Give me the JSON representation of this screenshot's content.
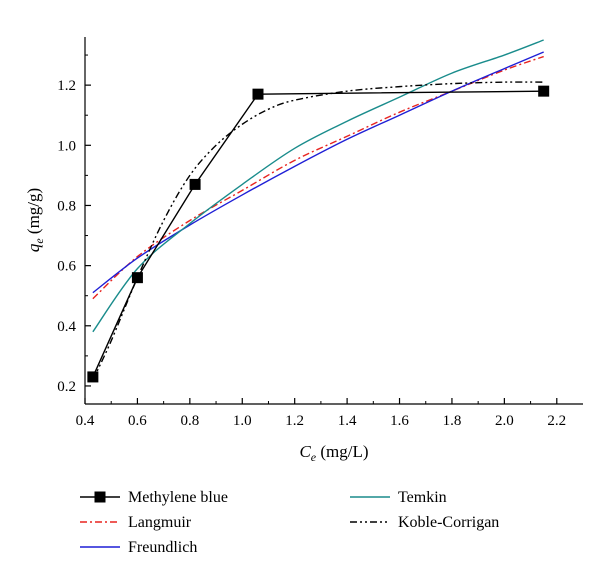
{
  "chart_data": {
    "type": "line",
    "x_axis": {
      "ticks": [
        0.4,
        0.6,
        0.8,
        1.0,
        1.2,
        1.4,
        1.6,
        1.8,
        2.0,
        2.2
      ],
      "tick_labels": [
        "0.4",
        "0.6",
        "0.8",
        "1.0",
        "1.2",
        "1.4",
        "1.6",
        "1.8",
        "2.0",
        "2.2"
      ],
      "range": [
        0.4,
        2.3
      ],
      "label_main": "C",
      "label_sub": "e",
      "label_unit": " (mg/L)"
    },
    "y_axis": {
      "ticks": [
        0.2,
        0.4,
        0.6,
        0.8,
        1.0,
        1.2
      ],
      "tick_labels": [
        "0.2",
        "0.4",
        "0.6",
        "0.8",
        "1.0",
        "1.2"
      ],
      "range": [
        0.14,
        1.36
      ],
      "label_main": "q",
      "label_sub": "e",
      "label_unit": " (mg/g)"
    },
    "grid": false,
    "legend_position": "bottom",
    "series": [
      {
        "name": "Methylene blue",
        "color": "#000000",
        "dash": "solid",
        "marker": "square",
        "x": [
          0.43,
          0.6,
          0.82,
          1.06,
          2.15
        ],
        "y": [
          0.23,
          0.56,
          0.87,
          1.17,
          1.18
        ]
      },
      {
        "name": "Langmuir",
        "color": "#e8231f",
        "dash": "dashdot",
        "marker": "none",
        "x": [
          0.43,
          0.6,
          0.8,
          1.0,
          1.2,
          1.4,
          1.6,
          1.8,
          2.0,
          2.15
        ],
        "y": [
          0.49,
          0.63,
          0.75,
          0.85,
          0.95,
          1.03,
          1.11,
          1.18,
          1.25,
          1.295
        ]
      },
      {
        "name": "Freundlich",
        "color": "#1f1fd6",
        "dash": "solid",
        "marker": "none",
        "x": [
          0.43,
          0.6,
          0.8,
          1.0,
          1.2,
          1.4,
          1.6,
          1.8,
          2.0,
          2.15
        ],
        "y": [
          0.51,
          0.625,
          0.735,
          0.835,
          0.93,
          1.02,
          1.1,
          1.18,
          1.255,
          1.31
        ]
      },
      {
        "name": "Temkin",
        "color": "#1a8c8c",
        "dash": "solid",
        "marker": "none",
        "x": [
          0.43,
          0.6,
          0.8,
          1.0,
          1.2,
          1.4,
          1.6,
          1.8,
          2.0,
          2.15
        ],
        "y": [
          0.38,
          0.59,
          0.74,
          0.87,
          0.99,
          1.08,
          1.16,
          1.24,
          1.3,
          1.35
        ]
      },
      {
        "name": "Koble-Corrigan",
        "color": "#000000",
        "dash": "dashdotdot",
        "marker": "none",
        "x": [
          0.43,
          0.5,
          0.6,
          0.7,
          0.8,
          0.9,
          1.0,
          1.1,
          1.2,
          1.4,
          1.6,
          1.8,
          2.0,
          2.15
        ],
        "y": [
          0.22,
          0.35,
          0.56,
          0.75,
          0.9,
          1.0,
          1.07,
          1.12,
          1.15,
          1.18,
          1.195,
          1.205,
          1.21,
          1.21
        ]
      }
    ]
  }
}
